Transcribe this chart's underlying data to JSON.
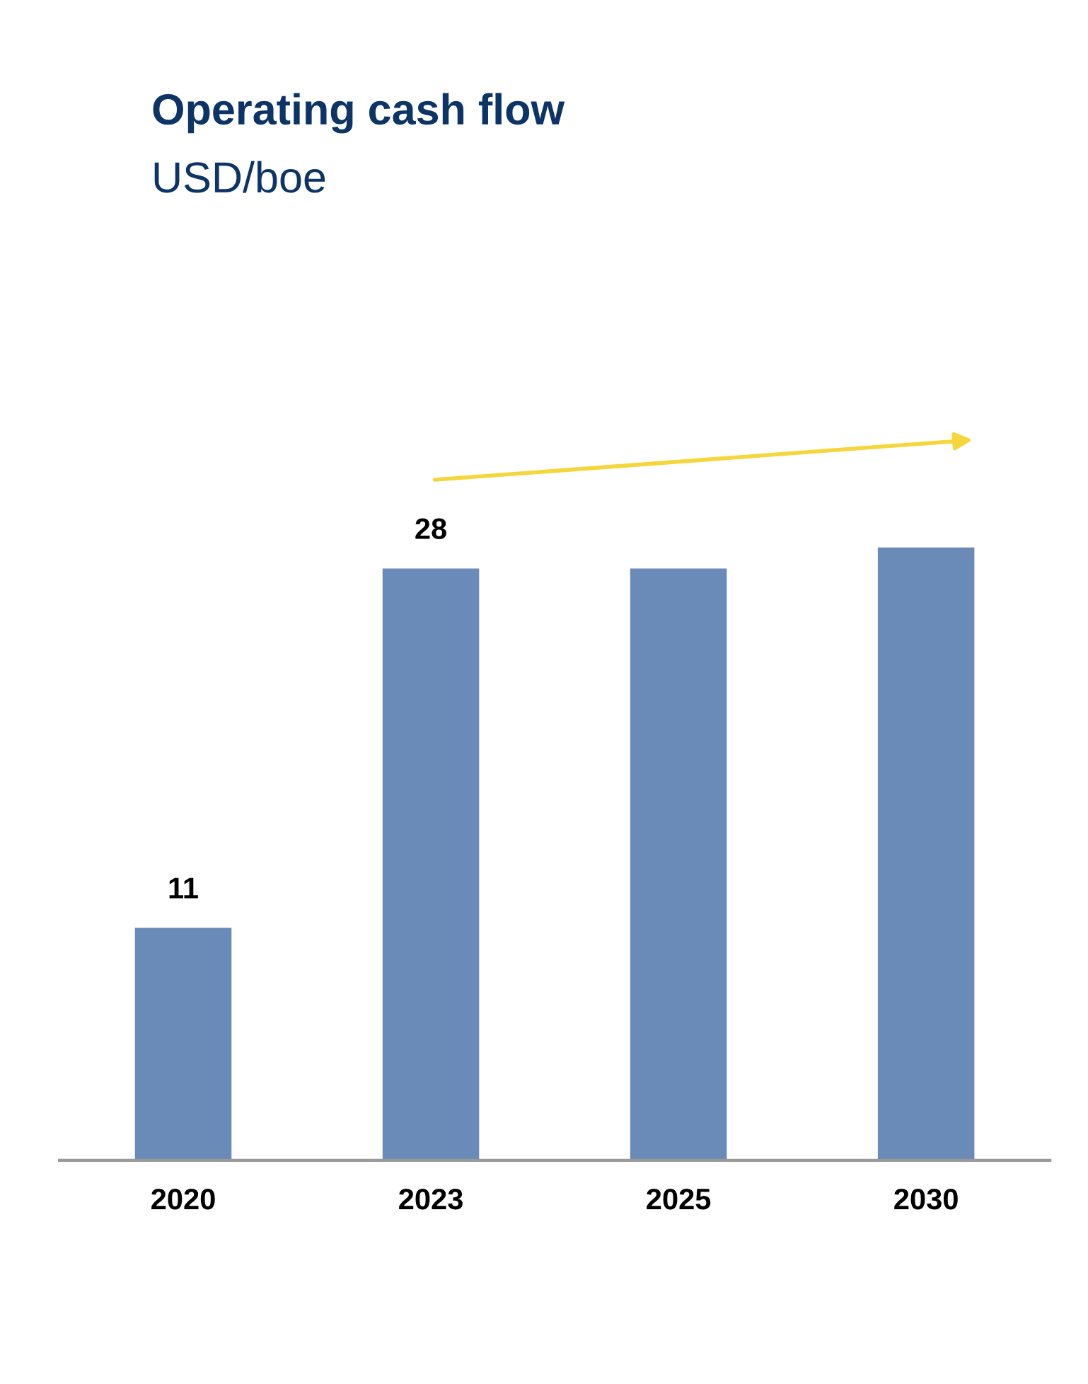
{
  "chart_data": {
    "type": "bar",
    "title": "Operating cash flow",
    "subtitle": "USD/boe",
    "categories": [
      "2020",
      "2023",
      "2025",
      "2030"
    ],
    "values": [
      11,
      28,
      28,
      29
    ],
    "value_labels": [
      "11",
      "28",
      null,
      null
    ],
    "color": "#6a8ab8",
    "tick_labels": "x",
    "grid": false,
    "legend": false
  }
}
